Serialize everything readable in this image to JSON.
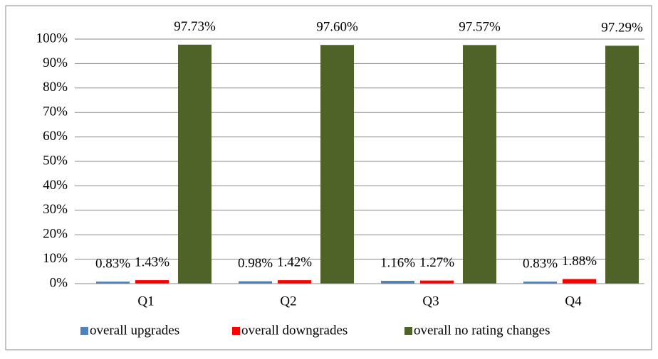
{
  "chart_data": {
    "type": "bar",
    "categories": [
      "Q1",
      "Q2",
      "Q3",
      "Q4"
    ],
    "series": [
      {
        "name": "overall upgrades",
        "color": "#4f81bd",
        "values": [
          0.83,
          0.98,
          1.16,
          0.83
        ],
        "value_labels": [
          "0.83%",
          "0.98%",
          "1.16%",
          "0.83%"
        ]
      },
      {
        "name": "overall downgrades",
        "color": "#ff0000",
        "values": [
          1.43,
          1.42,
          1.27,
          1.88
        ],
        "value_labels": [
          "1.43%",
          "1.42%",
          "1.27%",
          "1.88%"
        ]
      },
      {
        "name": "overall no rating changes",
        "color": "#4f6228",
        "values": [
          97.73,
          97.6,
          97.57,
          97.29
        ],
        "value_labels": [
          "97.73%",
          "97.60%",
          "97.57%",
          "97.29%"
        ]
      }
    ],
    "ylim": [
      0,
      100
    ],
    "yticks": [
      {
        "value": 0,
        "label": "0%"
      },
      {
        "value": 10,
        "label": "10%"
      },
      {
        "value": 20,
        "label": "20%"
      },
      {
        "value": 30,
        "label": "30%"
      },
      {
        "value": 40,
        "label": "40%"
      },
      {
        "value": 50,
        "label": "50%"
      },
      {
        "value": 60,
        "label": "60%"
      },
      {
        "value": 70,
        "label": "70%"
      },
      {
        "value": 80,
        "label": "80%"
      },
      {
        "value": 90,
        "label": "90%"
      },
      {
        "value": 100,
        "label": "100%"
      }
    ],
    "grid": true,
    "legend": "bottom"
  }
}
